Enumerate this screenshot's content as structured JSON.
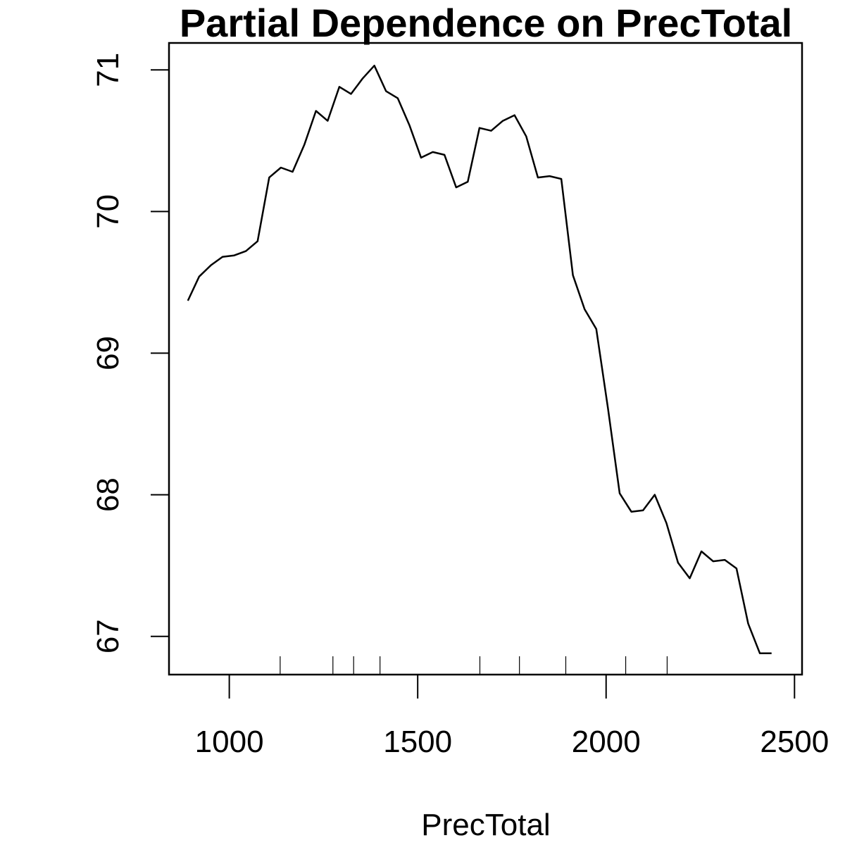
{
  "chart_data": {
    "type": "line",
    "title": "Partial Dependence on PrecTotal",
    "xlabel": "PrecTotal",
    "ylabel": "",
    "xlim": [
      840,
      2520
    ],
    "ylim": [
      66.73,
      71.19
    ],
    "x_ticks": [
      1000,
      1500,
      2000,
      2500
    ],
    "y_ticks": [
      67,
      68,
      69,
      70,
      71
    ],
    "grid": false,
    "legend": "none",
    "x": [
      890,
      920,
      951,
      982,
      1013,
      1044,
      1075,
      1106,
      1137,
      1168,
      1199,
      1230,
      1261,
      1292,
      1323,
      1354,
      1385,
      1416,
      1447,
      1478,
      1509,
      1540,
      1571,
      1602,
      1633,
      1664,
      1695,
      1726,
      1757,
      1788,
      1819,
      1850,
      1881,
      1912,
      1943,
      1974,
      2005,
      2036,
      2067,
      2098,
      2129,
      2160,
      2191,
      2222,
      2253,
      2284,
      2315,
      2346,
      2377,
      2408,
      2439
    ],
    "y": [
      69.37,
      69.54,
      69.62,
      69.68,
      69.69,
      69.72,
      69.79,
      70.24,
      70.31,
      70.28,
      70.47,
      70.71,
      70.64,
      70.88,
      70.83,
      70.94,
      71.03,
      70.85,
      70.8,
      70.61,
      70.38,
      70.42,
      70.4,
      70.17,
      70.21,
      70.59,
      70.57,
      70.64,
      70.68,
      70.53,
      70.24,
      70.25,
      70.23,
      69.55,
      69.31,
      69.17,
      68.61,
      68.01,
      67.88,
      67.89,
      68.0,
      67.8,
      67.52,
      67.41,
      67.6,
      67.53,
      67.54,
      67.48,
      67.09,
      66.88,
      66.88
    ],
    "rug_x": [
      1135,
      1275,
      1330,
      1400,
      1665,
      1770,
      1893,
      2052,
      2162
    ],
    "line_color": "#000000"
  }
}
